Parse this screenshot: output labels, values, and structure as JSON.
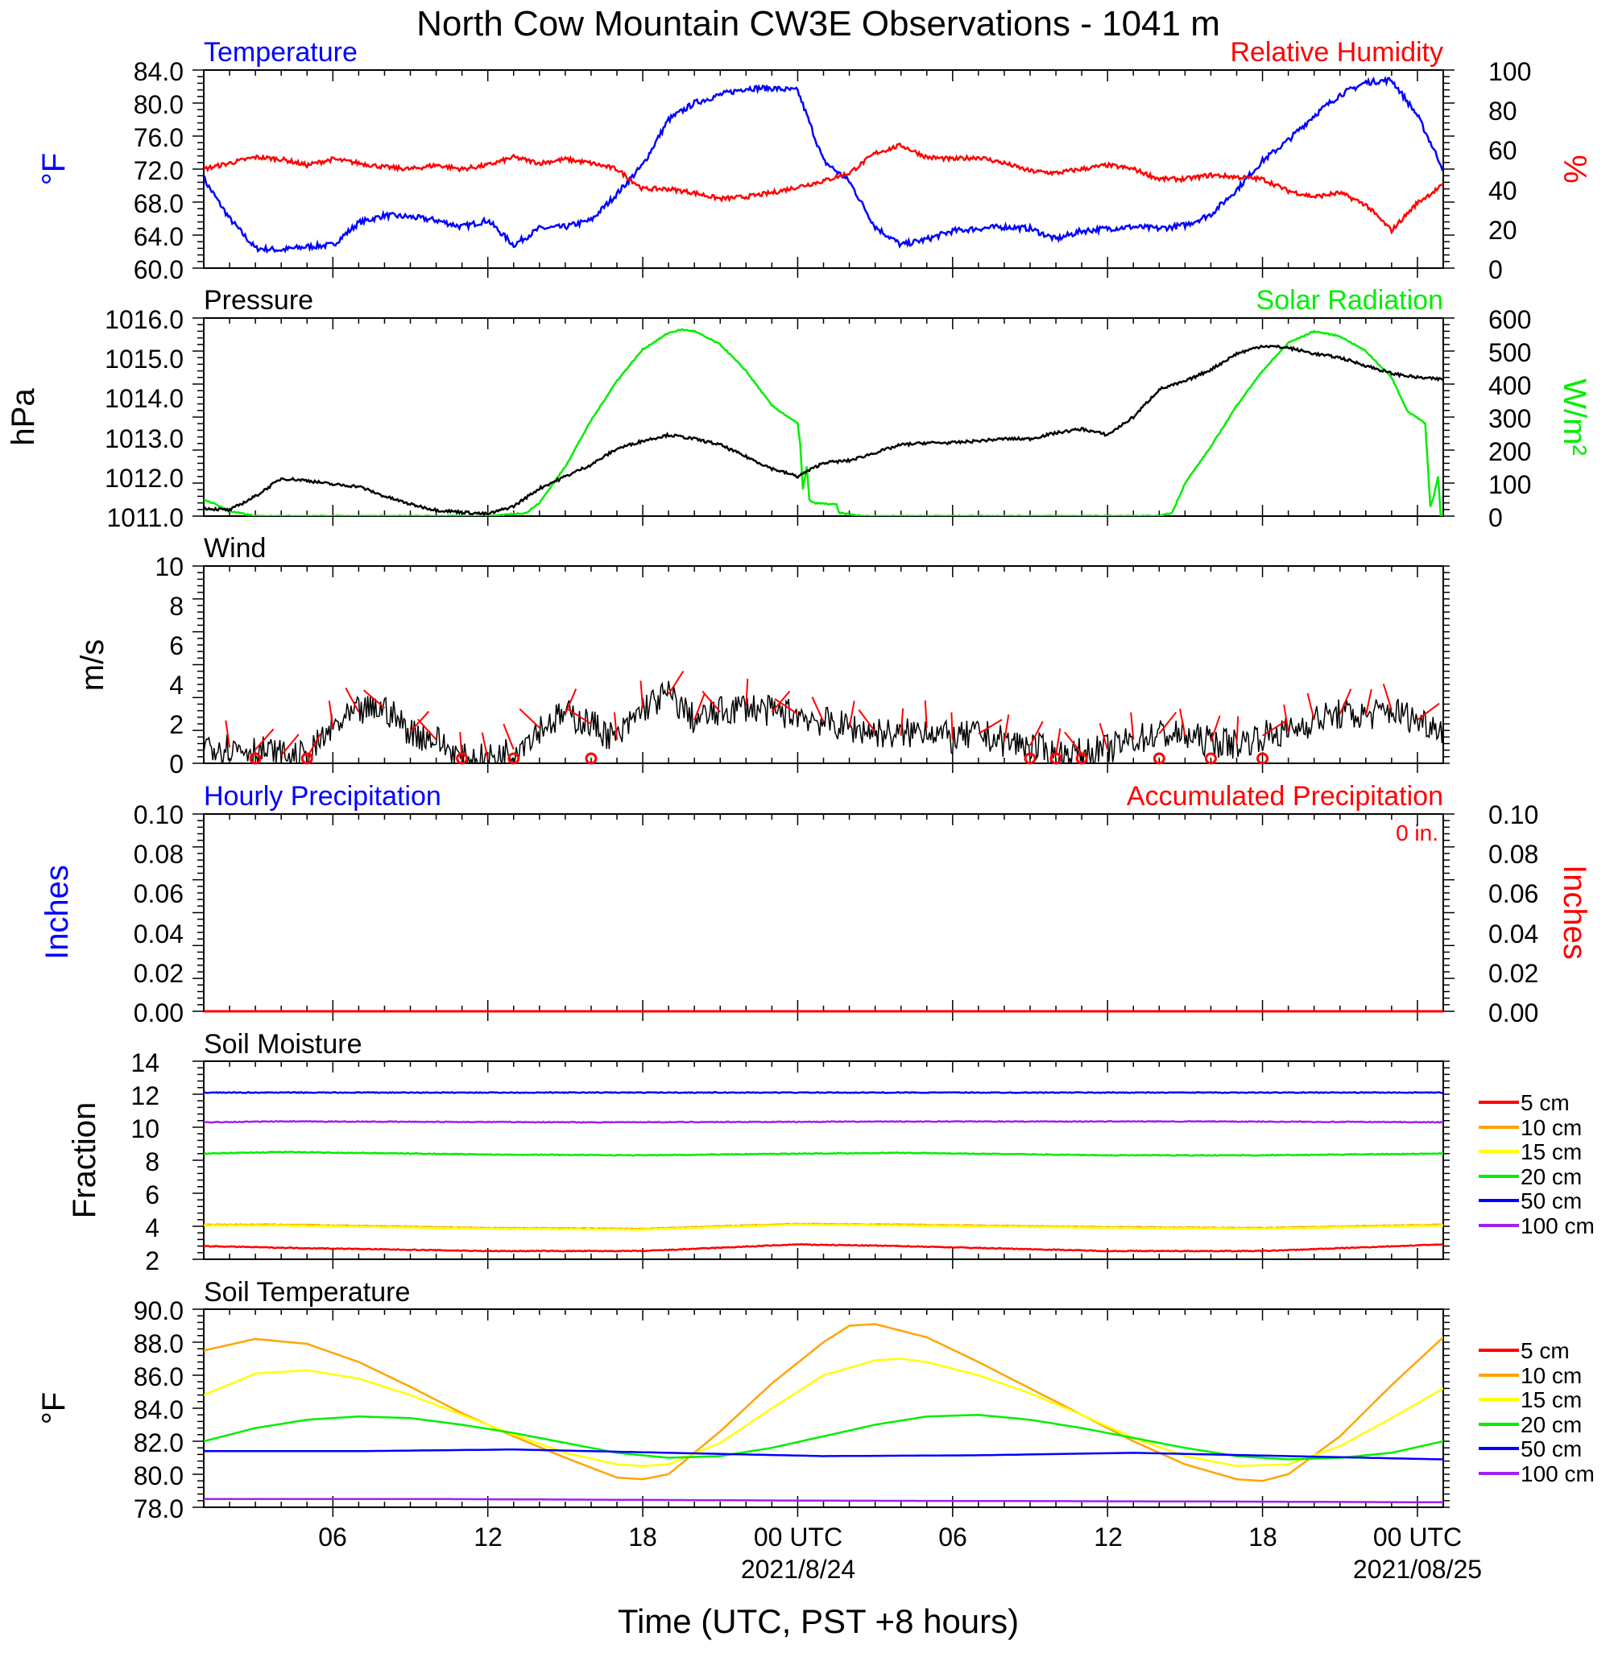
{
  "title": "North Cow Mountain CW3E Observations - 1041 m",
  "xaxis": {
    "label": "Time (UTC, PST +8 hours)",
    "ticks": [
      "06",
      "12",
      "18",
      "00 UTC",
      "06",
      "12",
      "18",
      "00 UTC"
    ],
    "dates": [
      "2021/8/24",
      "2021/08/25"
    ],
    "range_hours": [
      1,
      49
    ]
  },
  "colors": {
    "blue": "#0000ff",
    "red": "#ff0000",
    "green": "#00ee00",
    "black": "#000000",
    "orange": "#ffa500",
    "yellow": "#ffff00",
    "purple": "#a020f0"
  },
  "panels": {
    "temp_rh": {
      "left_title": "Temperature",
      "right_title": "Relative Humidity",
      "left_unit": "°F",
      "right_unit": "%",
      "left_ticks": [
        "84.0",
        "80.0",
        "76.0",
        "72.0",
        "68.0",
        "64.0",
        "60.0"
      ],
      "right_ticks": [
        "100",
        "80",
        "60",
        "40",
        "20",
        "0"
      ]
    },
    "pressure_solar": {
      "left_title": "Pressure",
      "right_title": "Solar Radiation",
      "left_unit": "hPa",
      "right_unit": "W/m²",
      "left_ticks": [
        "1016.0",
        "1015.0",
        "1014.0",
        "1013.0",
        "1012.0",
        "1011.0"
      ],
      "right_ticks": [
        "600",
        "500",
        "400",
        "300",
        "200",
        "100",
        "0"
      ]
    },
    "wind": {
      "title": "Wind",
      "unit": "m/s",
      "ticks": [
        "10",
        "8",
        "6",
        "4",
        "2",
        "0"
      ]
    },
    "precip": {
      "left_title": "Hourly Precipitation",
      "right_title": "Accumulated Precipitation",
      "total": "0 in.",
      "left_unit": "Inches",
      "right_unit": "Inches",
      "left_ticks": [
        "0.10",
        "0.08",
        "0.06",
        "0.04",
        "0.02",
        "0.00"
      ],
      "right_ticks": [
        "0.10",
        "0.08",
        "0.06",
        "0.04",
        "0.02",
        "0.00"
      ]
    },
    "soil_moisture": {
      "title": "Soil Moisture",
      "unit": "Fraction",
      "ticks": [
        "14",
        "12",
        "10",
        "8",
        "6",
        "4",
        "2"
      ],
      "legend": [
        "5 cm",
        "10 cm",
        "15 cm",
        "20 cm",
        "50 cm",
        "100 cm"
      ]
    },
    "soil_temp": {
      "title": "Soil Temperature",
      "unit": "°F",
      "ticks": [
        "90.0",
        "88.0",
        "86.0",
        "84.0",
        "82.0",
        "80.0",
        "78.0"
      ],
      "legend": [
        "5 cm",
        "10 cm",
        "15 cm",
        "20 cm",
        "50 cm",
        "100 cm"
      ]
    }
  },
  "chart_data": [
    {
      "type": "line",
      "title": "Temperature / Relative Humidity",
      "x_unit": "hours since 2021-08-23 00 UTC",
      "ylim_left": [
        60,
        84
      ],
      "ylim_right": [
        0,
        100
      ],
      "series": [
        {
          "name": "Temperature",
          "color": "#0000ff",
          "axis": "left",
          "x": [
            1,
            2,
            3,
            4,
            5,
            6,
            7,
            8,
            9,
            10,
            11,
            12,
            13,
            14,
            15,
            16,
            17,
            18,
            19,
            20,
            21,
            22,
            23,
            24,
            25,
            26,
            27,
            28,
            29,
            30,
            31,
            32,
            33,
            34,
            35,
            36,
            37,
            38,
            39,
            40,
            41,
            42,
            43,
            44,
            45,
            46,
            47,
            48,
            49
          ],
          "y": [
            70.8,
            66.0,
            62.4,
            62.2,
            62.6,
            62.8,
            65.5,
            66.4,
            66.2,
            65.8,
            65.0,
            65.8,
            62.8,
            64.8,
            65.0,
            65.8,
            69.0,
            72.5,
            78.0,
            80.0,
            81.0,
            81.8,
            81.8,
            81.5,
            73.0,
            70.5,
            65.0,
            62.8,
            63.5,
            64.5,
            64.8,
            65.0,
            64.8,
            63.5,
            64.5,
            64.8,
            65.0,
            64.8,
            65.2,
            66.5,
            69.5,
            73.0,
            75.5,
            78.5,
            81.0,
            82.5,
            82.8,
            78.5,
            72.0
          ]
        },
        {
          "name": "Relative Humidity",
          "color": "#ff0000",
          "axis": "right",
          "x": [
            1,
            2,
            3,
            4,
            5,
            6,
            7,
            8,
            9,
            10,
            11,
            12,
            13,
            14,
            15,
            16,
            17,
            18,
            19,
            20,
            21,
            22,
            23,
            24,
            25,
            26,
            27,
            28,
            29,
            30,
            31,
            32,
            33,
            34,
            35,
            36,
            37,
            38,
            39,
            40,
            41,
            42,
            43,
            44,
            45,
            46,
            47,
            48,
            49
          ],
          "y": [
            50,
            53,
            56,
            55,
            52,
            55,
            53,
            51,
            50,
            52,
            50,
            52,
            56,
            53,
            55,
            53,
            50,
            40,
            40,
            38,
            35,
            36,
            38,
            41,
            44,
            48,
            58,
            62,
            56,
            55,
            56,
            53,
            49,
            48,
            50,
            52,
            50,
            45,
            45,
            47,
            46,
            45,
            39,
            36,
            38,
            32,
            19,
            33,
            42
          ]
        }
      ]
    },
    {
      "type": "line",
      "title": "Pressure / Solar Radiation",
      "x_unit": "hours since 2021-08-23 00 UTC",
      "ylim_left": [
        1011,
        1016
      ],
      "ylim_right": [
        0,
        600
      ],
      "series": [
        {
          "name": "Pressure",
          "color": "#000000",
          "axis": "left",
          "x": [
            1,
            2,
            3,
            4,
            5,
            6,
            7,
            8,
            9,
            10,
            11,
            12,
            13,
            14,
            15,
            16,
            17,
            18,
            19,
            20,
            21,
            22,
            23,
            24,
            25,
            26,
            27,
            28,
            29,
            30,
            31,
            32,
            33,
            34,
            35,
            36,
            37,
            38,
            39,
            40,
            41,
            42,
            43,
            44,
            45,
            46,
            47,
            48,
            49
          ],
          "y": [
            1011.2,
            1011.15,
            1011.5,
            1011.95,
            1011.9,
            1011.8,
            1011.75,
            1011.5,
            1011.3,
            1011.15,
            1011.1,
            1011.05,
            1011.25,
            1011.7,
            1012.0,
            1012.3,
            1012.7,
            1012.9,
            1013.05,
            1012.95,
            1012.8,
            1012.5,
            1012.2,
            1012.0,
            1012.35,
            1012.4,
            1012.6,
            1012.8,
            1012.85,
            1012.85,
            1012.9,
            1012.95,
            1012.95,
            1013.1,
            1013.2,
            1013.05,
            1013.5,
            1014.2,
            1014.4,
            1014.7,
            1015.1,
            1015.3,
            1015.25,
            1015.1,
            1015.0,
            1014.8,
            1014.6,
            1014.5,
            1014.45
          ]
        },
        {
          "name": "Solar Radiation",
          "color": "#00ee00",
          "axis": "right",
          "x": [
            1,
            1.5,
            2,
            3,
            12,
            13.5,
            14,
            15,
            16,
            17,
            18,
            19,
            19.5,
            20,
            21,
            22,
            23,
            24,
            24.1,
            24.2,
            24.35,
            24.45,
            24.6,
            25.5,
            25.6,
            26.5,
            38,
            38.5,
            39,
            40,
            41,
            42,
            43,
            44,
            45,
            46,
            47,
            47.6,
            48.3,
            48.5,
            48.6,
            48.8,
            48.9,
            49
          ],
          "y": [
            50,
            35,
            15,
            0,
            0,
            10,
            40,
            150,
            290,
            410,
            505,
            555,
            565,
            560,
            520,
            440,
            335,
            280,
            220,
            80,
            150,
            50,
            40,
            35,
            10,
            0,
            0,
            10,
            100,
            210,
            335,
            440,
            525,
            560,
            545,
            500,
            420,
            320,
            280,
            30,
            50,
            120,
            5,
            5
          ]
        }
      ]
    },
    {
      "type": "line",
      "title": "Wind",
      "x_unit": "hours since 2021-08-23 00 UTC",
      "ylim": [
        0,
        10
      ],
      "series": [
        {
          "name": "Wind speed",
          "color": "#000000",
          "x": [
            1,
            2,
            3,
            4,
            5,
            6,
            7,
            8,
            9,
            10,
            11,
            12,
            13,
            14,
            15,
            16,
            17,
            18,
            19,
            20,
            21,
            22,
            23,
            24,
            25,
            26,
            27,
            28,
            29,
            30,
            31,
            32,
            33,
            34,
            35,
            36,
            37,
            38,
            39,
            40,
            41,
            42,
            43,
            44,
            45,
            46,
            47,
            48,
            49
          ],
          "y": [
            1.0,
            0.8,
            0.7,
            0.4,
            0.3,
            1.8,
            2.6,
            2.8,
            1.6,
            1.2,
            0.2,
            0.2,
            0.7,
            1.8,
            2.5,
            2.0,
            1.2,
            2.8,
            3.5,
            2.2,
            2.6,
            2.9,
            2.6,
            2.5,
            2.1,
            1.8,
            1.6,
            1.4,
            1.8,
            1.2,
            1.5,
            1.1,
            0.9,
            0.4,
            0.5,
            0.7,
            1.2,
            1.5,
            1.4,
            1.1,
            1.0,
            1.4,
            1.6,
            2.2,
            2.5,
            2.4,
            2.7,
            2.2,
            1.8
          ]
        }
      ],
      "calm_hours": [
        3,
        5,
        11,
        13,
        16,
        33,
        34,
        35,
        38,
        40,
        42
      ]
    },
    {
      "type": "line",
      "title": "Hourly / Accumulated Precipitation",
      "x_unit": "hours since 2021-08-23 00 UTC",
      "ylim": [
        0,
        0.1
      ],
      "series": [
        {
          "name": "Hourly Precipitation",
          "color": "#0000ff",
          "x": [
            1,
            49
          ],
          "y": [
            0,
            0
          ]
        },
        {
          "name": "Accumulated Precipitation",
          "color": "#ff0000",
          "x": [
            1,
            49
          ],
          "y": [
            0,
            0
          ]
        }
      ]
    },
    {
      "type": "line",
      "title": "Soil Moisture",
      "x_unit": "hours since 2021-08-23 00 UTC",
      "ylim": [
        2,
        14
      ],
      "series": [
        {
          "name": "5 cm",
          "color": "#ff0000",
          "x": [
            1,
            4,
            12,
            18,
            24,
            28,
            36,
            42,
            49
          ],
          "y": [
            2.8,
            2.7,
            2.5,
            2.5,
            2.9,
            2.8,
            2.5,
            2.5,
            2.9
          ]
        },
        {
          "name": "10 cm",
          "color": "#ffa500",
          "x": [
            1,
            4,
            12,
            18,
            24,
            28,
            36,
            42,
            49
          ],
          "y": [
            4.1,
            4.1,
            3.9,
            3.85,
            4.15,
            4.1,
            3.95,
            3.9,
            4.1
          ]
        },
        {
          "name": "15 cm",
          "color": "#ffff00",
          "x": [
            1,
            4,
            12,
            18,
            24,
            28,
            36,
            42,
            49
          ],
          "y": [
            4.05,
            4.05,
            3.85,
            3.8,
            4.1,
            4.05,
            3.9,
            3.85,
            4.05
          ]
        },
        {
          "name": "20 cm",
          "color": "#00ee00",
          "x": [
            1,
            4,
            12,
            18,
            24,
            28,
            36,
            42,
            49
          ],
          "y": [
            8.4,
            8.5,
            8.35,
            8.3,
            8.4,
            8.45,
            8.3,
            8.3,
            8.4
          ]
        },
        {
          "name": "50 cm",
          "color": "#0000ff",
          "x": [
            1,
            49
          ],
          "y": [
            12.1,
            12.1
          ]
        },
        {
          "name": "100 cm",
          "color": "#a020f0",
          "x": [
            1,
            4,
            16,
            30,
            40,
            49
          ],
          "y": [
            10.3,
            10.35,
            10.3,
            10.35,
            10.35,
            10.3
          ]
        }
      ]
    },
    {
      "type": "line",
      "title": "Soil Temperature",
      "x_unit": "hours since 2021-08-23 00 UTC",
      "ylim": [
        78,
        90
      ],
      "series": [
        {
          "name": "10 cm",
          "color": "#ffa500",
          "x": [
            1,
            3,
            5,
            7,
            9,
            11,
            13,
            15,
            17,
            18,
            19,
            21,
            23,
            25,
            26,
            27,
            29,
            31,
            33,
            35,
            37,
            39,
            41,
            42,
            43,
            45,
            47,
            49
          ],
          "y": [
            87.5,
            88.2,
            87.9,
            86.8,
            85.3,
            83.7,
            82.3,
            81.0,
            79.8,
            79.7,
            80.0,
            82.6,
            85.5,
            88.0,
            89.0,
            89.1,
            88.3,
            86.8,
            85.2,
            83.6,
            82.0,
            80.6,
            79.7,
            79.6,
            80.0,
            82.3,
            85.4,
            88.3
          ]
        },
        {
          "name": "15 cm",
          "color": "#ffff00",
          "x": [
            1,
            3,
            5,
            7,
            9,
            11,
            13,
            15,
            17,
            18,
            19,
            21,
            23,
            25,
            27,
            28,
            29,
            31,
            33,
            35,
            37,
            39,
            41,
            43,
            45,
            47,
            49
          ],
          "y": [
            84.8,
            86.1,
            86.3,
            85.8,
            84.8,
            83.6,
            82.4,
            81.3,
            80.6,
            80.5,
            80.6,
            81.9,
            84.0,
            86.0,
            86.9,
            87.0,
            86.8,
            86.0,
            84.9,
            83.6,
            82.2,
            81.1,
            80.5,
            80.6,
            81.7,
            83.4,
            85.2
          ]
        },
        {
          "name": "20 cm",
          "color": "#00ee00",
          "x": [
            1,
            3,
            5,
            7,
            9,
            11,
            13,
            15,
            17,
            19,
            21,
            23,
            25,
            27,
            29,
            31,
            33,
            35,
            37,
            39,
            41,
            43,
            45,
            47,
            49
          ],
          "y": [
            82.0,
            82.8,
            83.3,
            83.5,
            83.4,
            83.0,
            82.5,
            81.9,
            81.3,
            81.0,
            81.1,
            81.6,
            82.3,
            83.0,
            83.5,
            83.6,
            83.3,
            82.8,
            82.2,
            81.6,
            81.1,
            80.9,
            81.0,
            81.3,
            82.0
          ]
        },
        {
          "name": "50 cm",
          "color": "#0000ff",
          "x": [
            1,
            7,
            13,
            19,
            25,
            31,
            37,
            43,
            49
          ],
          "y": [
            81.4,
            81.4,
            81.5,
            81.3,
            81.1,
            81.15,
            81.3,
            81.1,
            80.9
          ]
        },
        {
          "name": "100 cm",
          "color": "#a020f0",
          "x": [
            1,
            10,
            25,
            40,
            49
          ],
          "y": [
            78.5,
            78.5,
            78.4,
            78.35,
            78.3
          ]
        }
      ]
    }
  ]
}
